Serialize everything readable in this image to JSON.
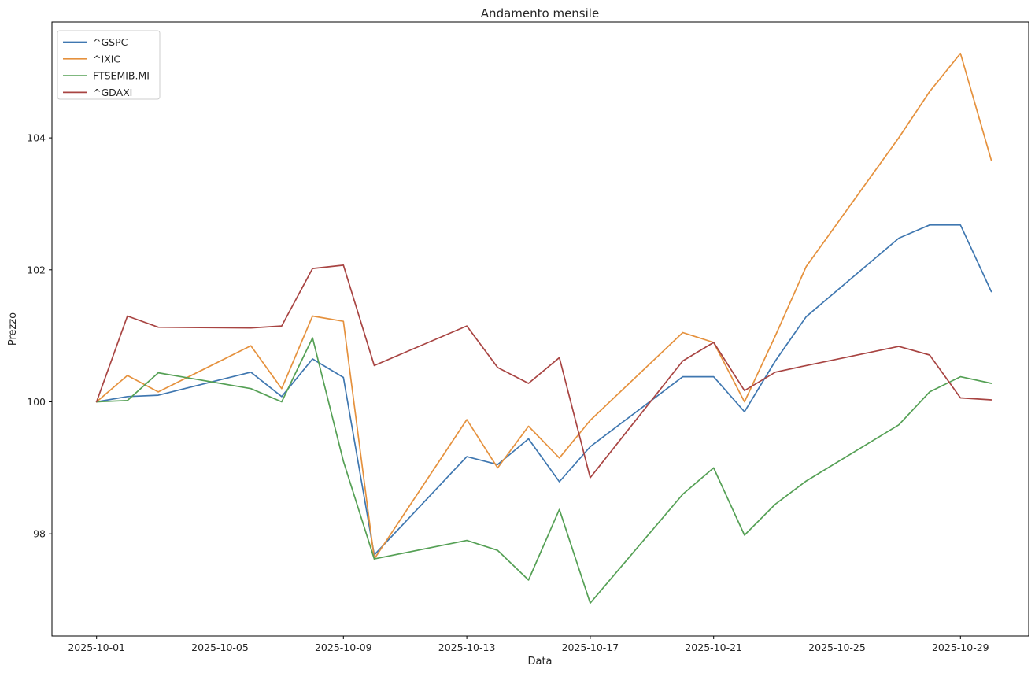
{
  "figure": {
    "title": "Andamento mensile",
    "xlabel": "Data",
    "ylabel": "Prezzo",
    "background_color": "#ffffff",
    "axis_line_color": "#000000",
    "legend_border_color": "#cccccc"
  },
  "chart_data": {
    "type": "line",
    "title": "Andamento mensile",
    "xlabel": "Data",
    "ylabel": "Prezzo",
    "grid": false,
    "legend_position": "upper-left",
    "x": [
      "2025-10-01",
      "2025-10-02",
      "2025-10-03",
      "2025-10-06",
      "2025-10-07",
      "2025-10-08",
      "2025-10-09",
      "2025-10-10",
      "2025-10-13",
      "2025-10-14",
      "2025-10-15",
      "2025-10-16",
      "2025-10-17",
      "2025-10-20",
      "2025-10-21",
      "2025-10-22",
      "2025-10-23",
      "2025-10-24",
      "2025-10-27",
      "2025-10-28",
      "2025-10-29",
      "2025-10-30"
    ],
    "x_tick_labels": [
      "2025-10-01",
      "2025-10-05",
      "2025-10-09",
      "2025-10-13",
      "2025-10-17",
      "2025-10-21",
      "2025-10-25",
      "2025-10-29"
    ],
    "y_ticks": [
      98,
      100,
      102,
      104
    ],
    "ylim": [
      96.45,
      105.75
    ],
    "xlim_days": [
      -1.45,
      30.45
    ],
    "series": [
      {
        "name": "^GSPC",
        "color": "#3f77b0",
        "values": [
          100.0,
          100.08,
          100.1,
          100.45,
          100.08,
          100.65,
          100.37,
          97.68,
          99.17,
          99.05,
          99.44,
          98.79,
          99.32,
          100.38,
          100.38,
          99.85,
          100.62,
          101.29,
          102.48,
          102.68,
          102.68,
          101.67
        ]
      },
      {
        "name": "^IXIC",
        "color": "#e5913d",
        "values": [
          100.0,
          100.4,
          100.15,
          100.85,
          100.2,
          101.3,
          101.22,
          97.62,
          99.73,
          99.0,
          99.63,
          99.15,
          99.72,
          101.05,
          100.9,
          100.0,
          101.0,
          102.05,
          104.0,
          104.7,
          105.28,
          103.66
        ]
      },
      {
        "name": "FTSEMIB.MI",
        "color": "#55a055",
        "values": [
          100.0,
          100.02,
          100.44,
          100.2,
          100.0,
          100.97,
          99.1,
          97.62,
          97.9,
          97.75,
          97.3,
          98.37,
          96.95,
          98.6,
          99.0,
          97.98,
          98.45,
          98.8,
          99.65,
          100.15,
          100.38,
          100.28
        ]
      },
      {
        "name": "^GDAXI",
        "color": "#a84442",
        "values": [
          100.0,
          101.3,
          101.13,
          101.12,
          101.15,
          102.02,
          102.07,
          100.55,
          101.15,
          100.52,
          100.28,
          100.67,
          98.85,
          100.62,
          100.9,
          100.17,
          100.45,
          100.55,
          100.84,
          100.71,
          100.06,
          100.03
        ]
      }
    ]
  }
}
